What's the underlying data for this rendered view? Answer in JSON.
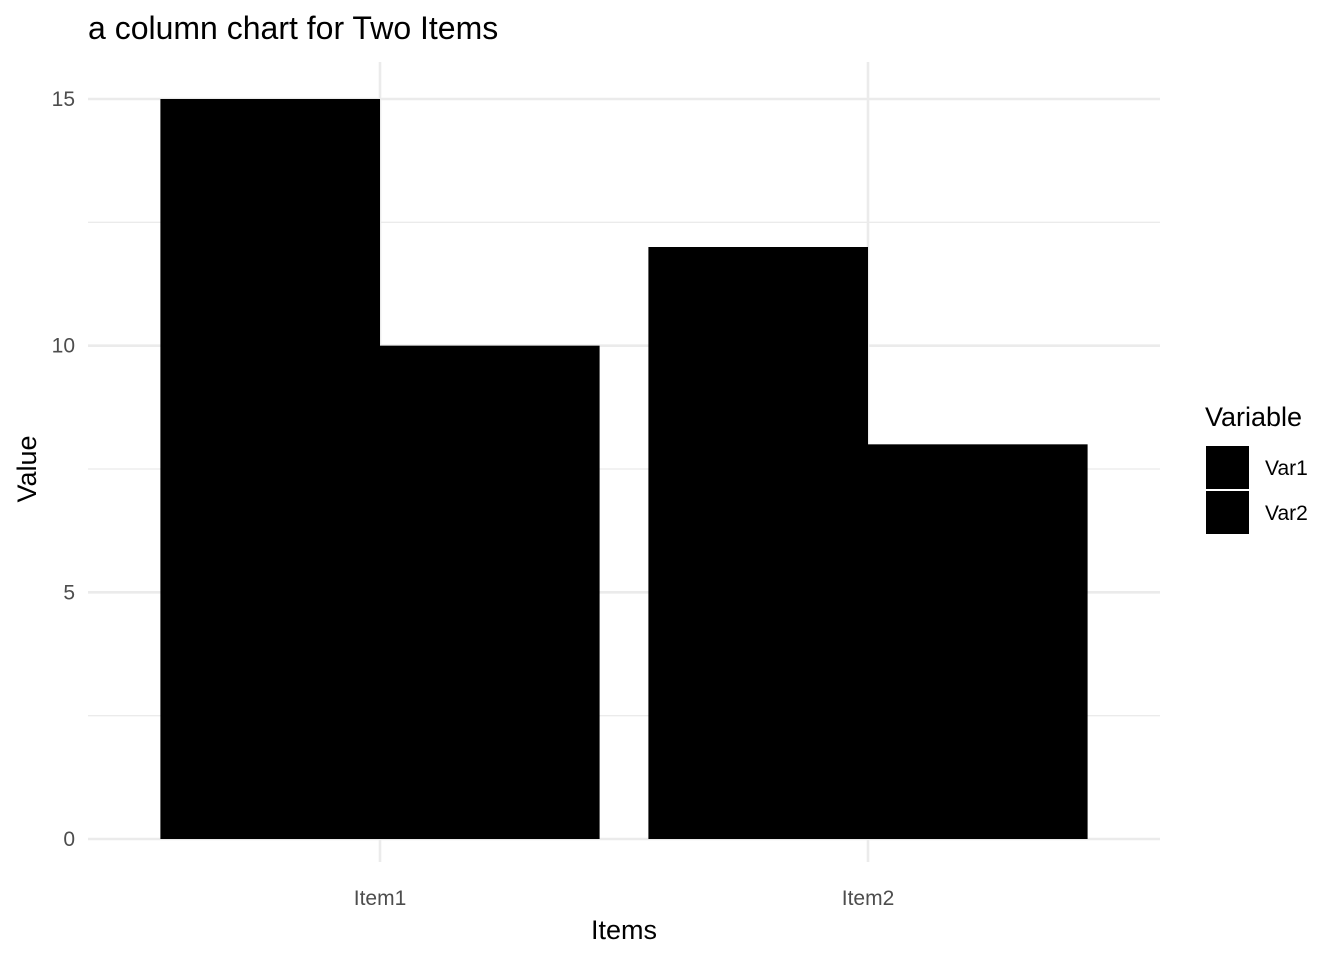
{
  "chart_data": {
    "type": "bar",
    "title": "a column chart for Two Items",
    "xlabel": "Items",
    "ylabel": "Value",
    "categories": [
      "Item1",
      "Item2"
    ],
    "series": [
      {
        "name": "Var1",
        "values": [
          15,
          12
        ],
        "color": "#000000"
      },
      {
        "name": "Var2",
        "values": [
          10,
          8
        ],
        "color": "#000000"
      }
    ],
    "ylim": [
      0,
      15
    ],
    "yticks": [
      0,
      5,
      10,
      15
    ],
    "grid": true,
    "legend": {
      "title": "Variable",
      "position": "right"
    },
    "bar_mode": "dodge"
  }
}
